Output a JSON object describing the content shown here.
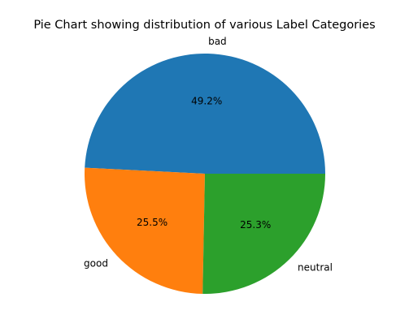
{
  "chart_data": {
    "type": "pie",
    "title": "Pie Chart showing distribution of various Label Categories",
    "slices": [
      {
        "label": "bad",
        "value": 49.2,
        "pct_label": "49.2%",
        "color": "#1f77b4"
      },
      {
        "label": "good",
        "value": 25.5,
        "pct_label": "25.5%",
        "color": "#ff7f0e"
      },
      {
        "label": "neutral",
        "value": 25.3,
        "pct_label": "25.3%",
        "color": "#2ca02c"
      }
    ],
    "start_angle_deg": 0,
    "direction": "counterclockwise",
    "legend": "none"
  }
}
